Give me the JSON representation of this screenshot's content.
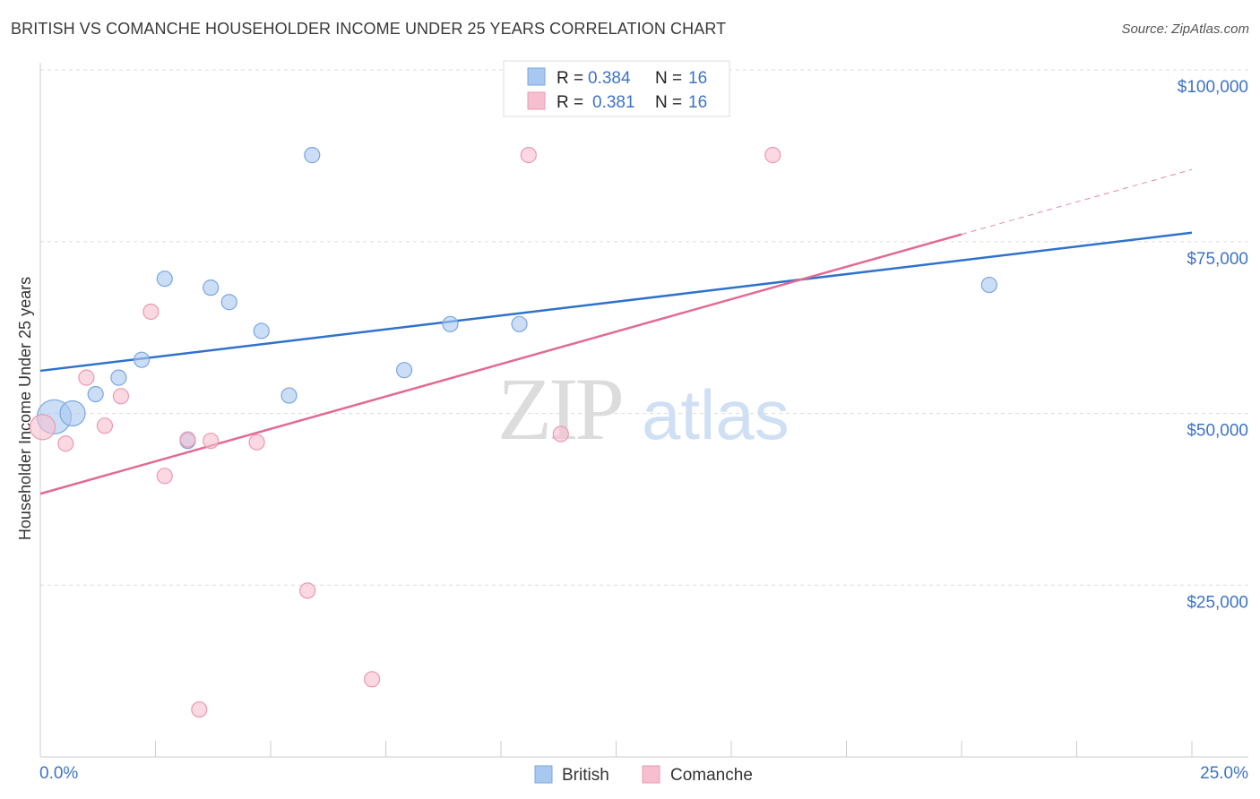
{
  "header": {
    "title": "BRITISH VS COMANCHE HOUSEHOLDER INCOME UNDER 25 YEARS CORRELATION CHART",
    "source": "Source: ZipAtlas.com"
  },
  "colors": {
    "british_fill": "#a9c8f0",
    "british_stroke": "#7aa6de",
    "british_line": "#2f72cc",
    "comanche_fill": "#f6bfcf",
    "comanche_stroke": "#eb98b2",
    "comanche_line": "#e26b93",
    "grid": "#dddddd",
    "tick_label": "#3d73c6"
  },
  "watermark": {
    "zip": "ZIP",
    "atlas": "atlas"
  },
  "chart_data": {
    "type": "scatter",
    "title": "BRITISH VS COMANCHE HOUSEHOLDER INCOME UNDER 25 YEARS CORRELATION CHART",
    "xlabel": "",
    "ylabel": "Householder Income Under 25 years",
    "xlim": [
      0,
      25
    ],
    "ylim": [
      0,
      102000
    ],
    "x_tick_labels": {
      "min": "0.0%",
      "max": "25.0%"
    },
    "y_ticks": [
      {
        "value": 25000,
        "label": "$25,000"
      },
      {
        "value": 50000,
        "label": "$50,000"
      },
      {
        "value": 75000,
        "label": "$75,000"
      },
      {
        "value": 100000,
        "label": "$100,000"
      }
    ],
    "grid": true,
    "legend": {
      "placement": "top-center",
      "entries": [
        {
          "series": "British",
          "r_label": "R =",
          "r_value": "0.384",
          "n_label": "N =",
          "n_value": "16"
        },
        {
          "series": "Comanche",
          "r_label": "R =",
          "r_value": "0.381",
          "n_label": "N =",
          "n_value": "16"
        }
      ]
    },
    "series": [
      {
        "name": "British",
        "points": [
          {
            "x": 0.3,
            "y": 49500,
            "size": "large"
          },
          {
            "x": 0.7,
            "y": 50000,
            "size": "medium"
          },
          {
            "x": 1.2,
            "y": 52800,
            "size": "small"
          },
          {
            "x": 1.7,
            "y": 55200,
            "size": "small"
          },
          {
            "x": 2.2,
            "y": 57800,
            "size": "small"
          },
          {
            "x": 2.7,
            "y": 69600,
            "size": "small"
          },
          {
            "x": 3.2,
            "y": 46000,
            "size": "small"
          },
          {
            "x": 3.7,
            "y": 68300,
            "size": "small"
          },
          {
            "x": 4.1,
            "y": 66200,
            "size": "small"
          },
          {
            "x": 4.8,
            "y": 62000,
            "size": "small"
          },
          {
            "x": 5.4,
            "y": 52600,
            "size": "small"
          },
          {
            "x": 5.9,
            "y": 87600,
            "size": "small"
          },
          {
            "x": 7.9,
            "y": 56300,
            "size": "small"
          },
          {
            "x": 8.9,
            "y": 63000,
            "size": "small"
          },
          {
            "x": 10.4,
            "y": 63000,
            "size": "small"
          },
          {
            "x": 20.6,
            "y": 68700,
            "size": "small"
          }
        ],
        "trend": {
          "x0": 0,
          "y0": 56200,
          "x1": 25,
          "y1": 76300,
          "dashed_from": null
        }
      },
      {
        "name": "Comanche",
        "points": [
          {
            "x": 0.05,
            "y": 48000,
            "size": "medium"
          },
          {
            "x": 0.55,
            "y": 45600,
            "size": "small"
          },
          {
            "x": 1.0,
            "y": 55200,
            "size": "small"
          },
          {
            "x": 1.4,
            "y": 48200,
            "size": "small"
          },
          {
            "x": 1.75,
            "y": 52500,
            "size": "small"
          },
          {
            "x": 2.4,
            "y": 64800,
            "size": "small"
          },
          {
            "x": 2.7,
            "y": 40900,
            "size": "small"
          },
          {
            "x": 3.2,
            "y": 46200,
            "size": "small"
          },
          {
            "x": 3.45,
            "y": 6900,
            "size": "small"
          },
          {
            "x": 3.7,
            "y": 46000,
            "size": "small"
          },
          {
            "x": 4.7,
            "y": 45800,
            "size": "small"
          },
          {
            "x": 5.8,
            "y": 24200,
            "size": "small"
          },
          {
            "x": 7.2,
            "y": 11300,
            "size": "small"
          },
          {
            "x": 10.6,
            "y": 87600,
            "size": "small"
          },
          {
            "x": 11.3,
            "y": 47000,
            "size": "small"
          },
          {
            "x": 15.9,
            "y": 87600,
            "size": "small"
          }
        ],
        "trend": {
          "x0": 0,
          "y0": 38300,
          "x1": 25,
          "y1": 85500,
          "dashed_from": 20
        }
      }
    ]
  }
}
